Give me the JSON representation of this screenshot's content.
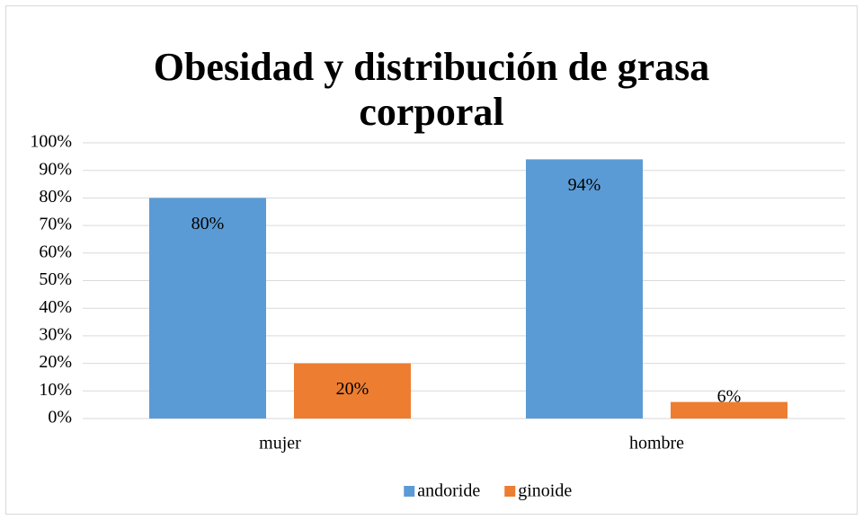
{
  "chart_data": {
    "type": "bar",
    "title": "Obesidad y distribución de grasa corporal",
    "categories": [
      "mujer",
      "hombre"
    ],
    "series": [
      {
        "name": "andoride",
        "color": "#5b9bd5",
        "values": [
          80,
          94
        ],
        "value_labels": [
          "80%",
          "94%"
        ]
      },
      {
        "name": "ginoide",
        "color": "#ed7d31",
        "values": [
          20,
          6
        ],
        "value_labels": [
          "20%",
          "6%"
        ]
      }
    ],
    "ylim": [
      0,
      100
    ],
    "yticks": [
      {
        "value": 0,
        "label": "0%"
      },
      {
        "value": 10,
        "label": "10%"
      },
      {
        "value": 20,
        "label": "20%"
      },
      {
        "value": 30,
        "label": "30%"
      },
      {
        "value": 40,
        "label": "40%"
      },
      {
        "value": 50,
        "label": "50%"
      },
      {
        "value": 60,
        "label": "60%"
      },
      {
        "value": 70,
        "label": "70%"
      },
      {
        "value": 80,
        "label": "80%"
      },
      {
        "value": 90,
        "label": "90%"
      },
      {
        "value": 100,
        "label": "100%"
      }
    ],
    "grid": true,
    "legend": "bottom"
  }
}
